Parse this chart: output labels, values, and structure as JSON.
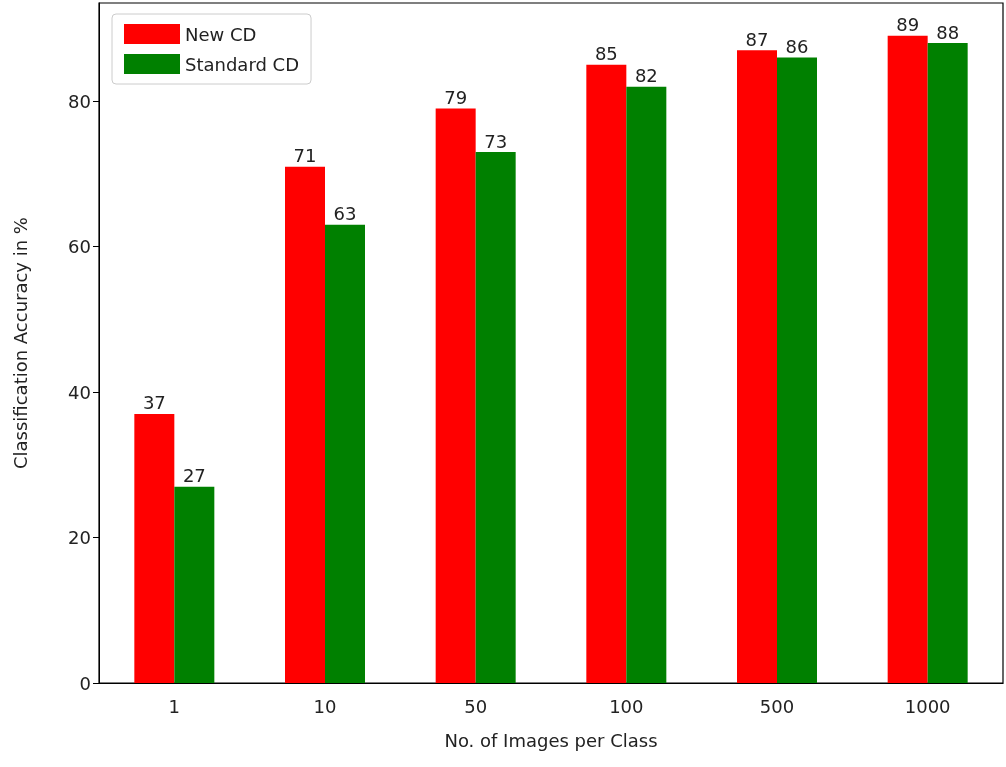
{
  "chart_data": {
    "type": "bar",
    "xlabel": "No. of Images per Class",
    "ylabel": "Classification Accuracy in %",
    "categories": [
      "1",
      "10",
      "50",
      "100",
      "500",
      "1000"
    ],
    "series": [
      {
        "name": "New CD",
        "color": "#ff0000",
        "values": [
          37,
          71,
          79,
          85,
          87,
          89
        ]
      },
      {
        "name": "Standard CD",
        "color": "#008000",
        "values": [
          27,
          63,
          73,
          82,
          86,
          88
        ]
      }
    ],
    "ylim": [
      0,
      93.5
    ],
    "yticks": [
      0,
      20,
      40,
      60,
      80
    ],
    "grid": false,
    "legend": "top left",
    "data_labels": true
  }
}
